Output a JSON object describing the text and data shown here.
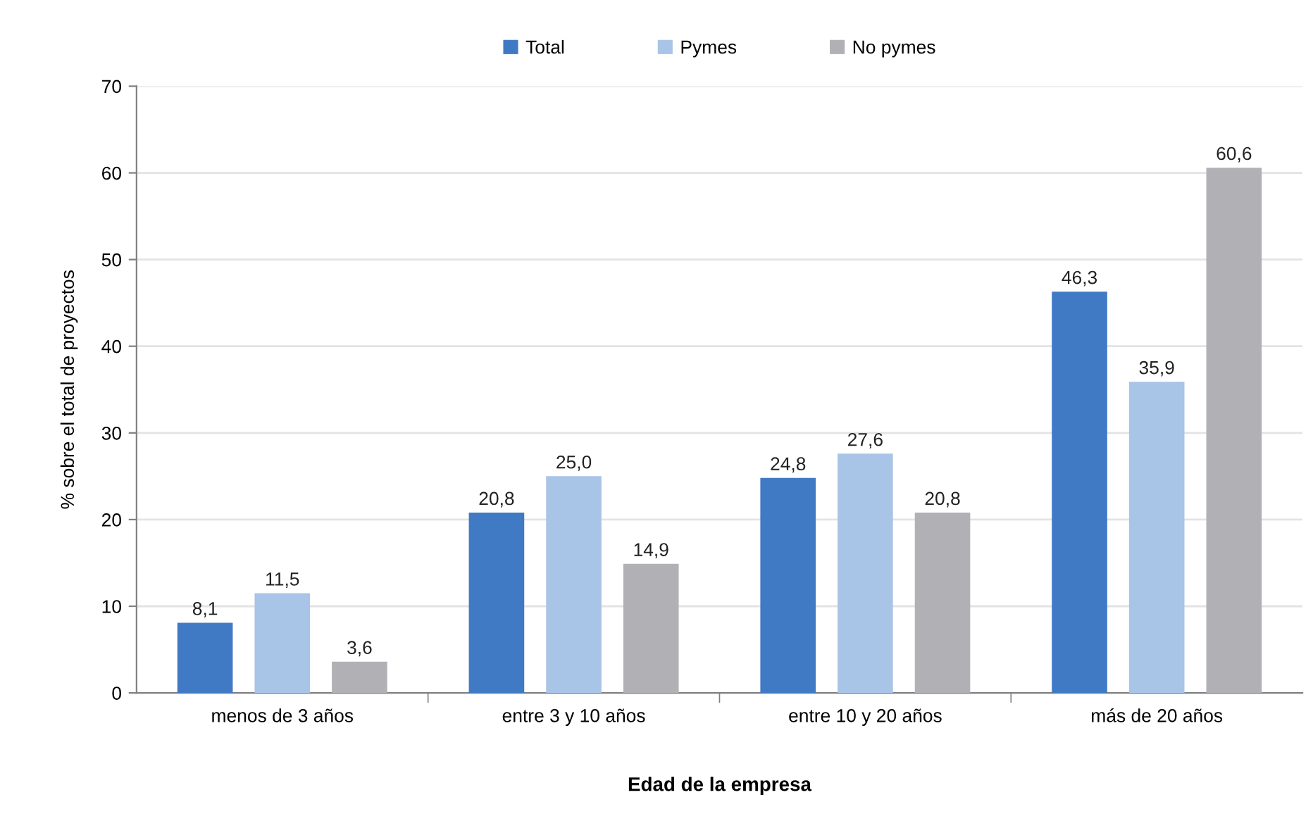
{
  "chart_data": {
    "type": "bar",
    "xlabel": "Edad de la empresa",
    "ylabel": "% sobre el total de proyectos",
    "categories": [
      "menos de 3 años",
      "entre 3 y 10 años",
      "entre 10 y 20 años",
      "más de 20 años"
    ],
    "series": [
      {
        "name": "Total",
        "color": "#4079c4",
        "values": [
          8.1,
          20.8,
          24.8,
          46.3
        ],
        "value_labels": [
          "8,1",
          "20,8",
          "24,8",
          "46,3"
        ]
      },
      {
        "name": "Pymes",
        "color": "#a8c4e6",
        "values": [
          11.5,
          25.0,
          27.6,
          35.9
        ],
        "value_labels": [
          "11,5",
          "25,0",
          "27,6",
          "35,9"
        ]
      },
      {
        "name": "No pymes",
        "color": "#b1b1b5",
        "values": [
          3.6,
          14.9,
          20.8,
          60.6
        ],
        "value_labels": [
          "3,6",
          "14,9",
          "20,8",
          "60,6"
        ]
      }
    ],
    "ylim": [
      0,
      70
    ],
    "yticks": [
      0,
      10,
      20,
      30,
      40,
      50,
      60,
      70
    ],
    "grid": "y",
    "legend": "top"
  }
}
